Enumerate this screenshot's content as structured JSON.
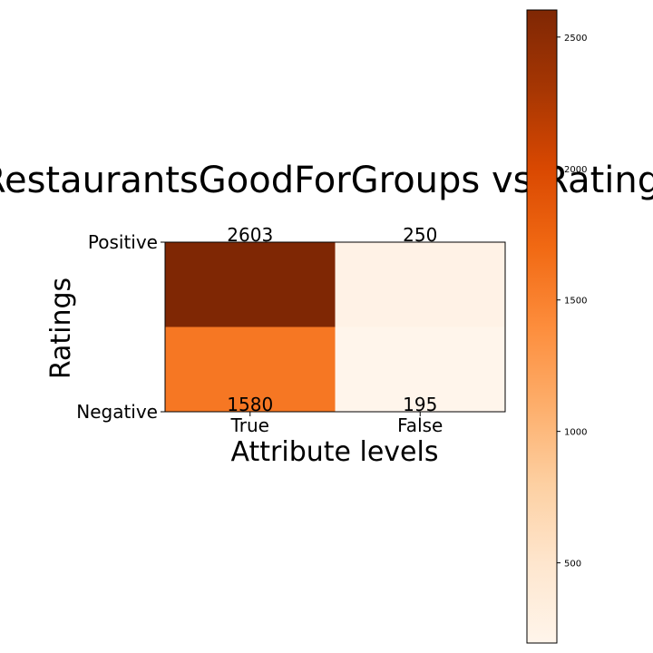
{
  "chart_data": {
    "type": "heatmap",
    "title": "RestaurantsGoodForGroups vs Ratings",
    "xlabel": "Attribute levels",
    "ylabel": "Ratings",
    "x_categories": [
      "True",
      "False"
    ],
    "y_categories": [
      "Positive",
      "Negative"
    ],
    "values": [
      [
        2603,
        250
      ],
      [
        1580,
        195
      ]
    ],
    "colormap": "Oranges",
    "colorbar": {
      "min": 195,
      "max": 2603,
      "ticks": [
        500,
        1000,
        1500,
        2000,
        2500
      ]
    },
    "grid": false
  }
}
